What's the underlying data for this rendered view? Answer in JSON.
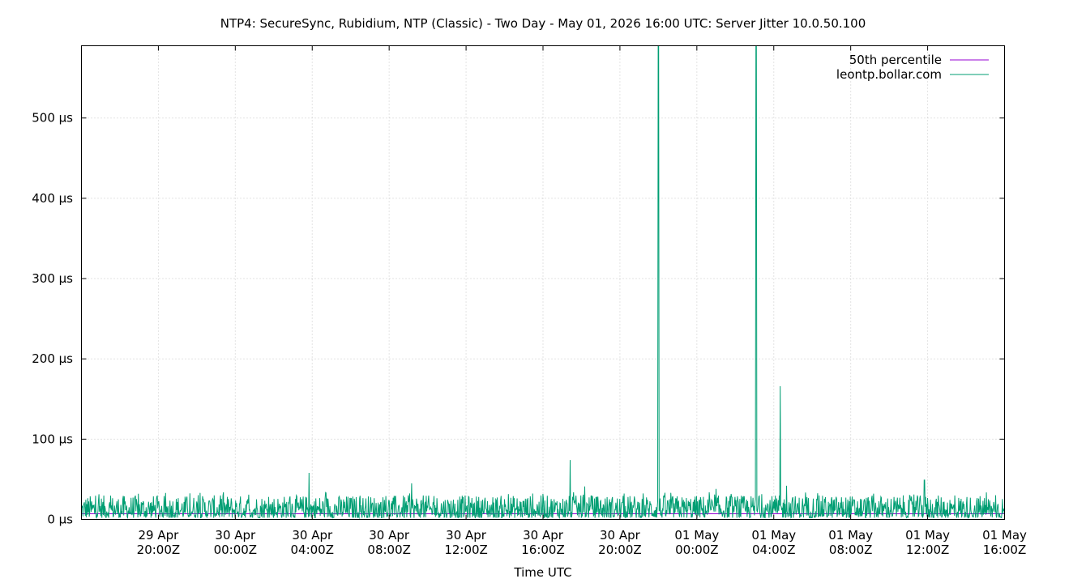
{
  "chart_data": {
    "type": "line",
    "title": "NTP4: SecureSync, Rubidium, NTP (Classic) - Two Day - May 01, 2026 16:00 UTC: Server Jitter 10.0.50.100",
    "xlabel": "Time UTC",
    "ylabel": "",
    "y_unit": "µs",
    "ylim": [
      0,
      590
    ],
    "yticks": [
      0,
      100,
      200,
      300,
      400,
      500
    ],
    "ytick_labels": [
      "0 µs",
      "100 µs",
      "200 µs",
      "300 µs",
      "400 µs",
      "500 µs"
    ],
    "xlim": [
      "2026-04-29T16:00Z",
      "2026-05-01T16:00Z"
    ],
    "xticks": [
      {
        "time": "2026-04-29T20:00Z",
        "line1": "29 Apr",
        "line2": "20:00Z"
      },
      {
        "time": "2026-04-30T00:00Z",
        "line1": "30 Apr",
        "line2": "00:00Z"
      },
      {
        "time": "2026-04-30T04:00Z",
        "line1": "30 Apr",
        "line2": "04:00Z"
      },
      {
        "time": "2026-04-30T08:00Z",
        "line1": "30 Apr",
        "line2": "08:00Z"
      },
      {
        "time": "2026-04-30T12:00Z",
        "line1": "30 Apr",
        "line2": "12:00Z"
      },
      {
        "time": "2026-04-30T16:00Z",
        "line1": "30 Apr",
        "line2": "16:00Z"
      },
      {
        "time": "2026-04-30T20:00Z",
        "line1": "30 Apr",
        "line2": "20:00Z"
      },
      {
        "time": "2026-05-01T00:00Z",
        "line1": "01 May",
        "line2": "00:00Z"
      },
      {
        "time": "2026-05-01T04:00Z",
        "line1": "01 May",
        "line2": "04:00Z"
      },
      {
        "time": "2026-05-01T08:00Z",
        "line1": "01 May",
        "line2": "08:00Z"
      },
      {
        "time": "2026-05-01T12:00Z",
        "line1": "01 May",
        "line2": "12:00Z"
      },
      {
        "time": "2026-05-01T16:00Z",
        "line1": "01 May",
        "line2": "16:00Z"
      }
    ],
    "grid": true,
    "legend_position": "top-right",
    "series": [
      {
        "name": "50th percentile",
        "color": "#9400d3",
        "style": "horizontal-line",
        "value": 7
      },
      {
        "name": "leontp.bollar.com",
        "color": "#009e73",
        "style": "noisy-line",
        "baseline_range": [
          2,
          30
        ],
        "spikes": [
          {
            "time": "2026-04-30T03:50Z",
            "value": 58
          },
          {
            "time": "2026-04-30T09:10Z",
            "value": 45
          },
          {
            "time": "2026-04-30T17:25Z",
            "value": 74
          },
          {
            "time": "2026-04-30T18:10Z",
            "value": 41
          },
          {
            "time": "2026-04-30T22:00Z",
            "value": 590
          },
          {
            "time": "2026-05-01T01:00Z",
            "value": 38
          },
          {
            "time": "2026-05-01T03:05Z",
            "value": 590
          },
          {
            "time": "2026-05-01T04:20Z",
            "value": 166
          },
          {
            "time": "2026-05-01T04:40Z",
            "value": 42
          },
          {
            "time": "2026-05-01T11:50Z",
            "value": 49
          }
        ]
      }
    ]
  }
}
